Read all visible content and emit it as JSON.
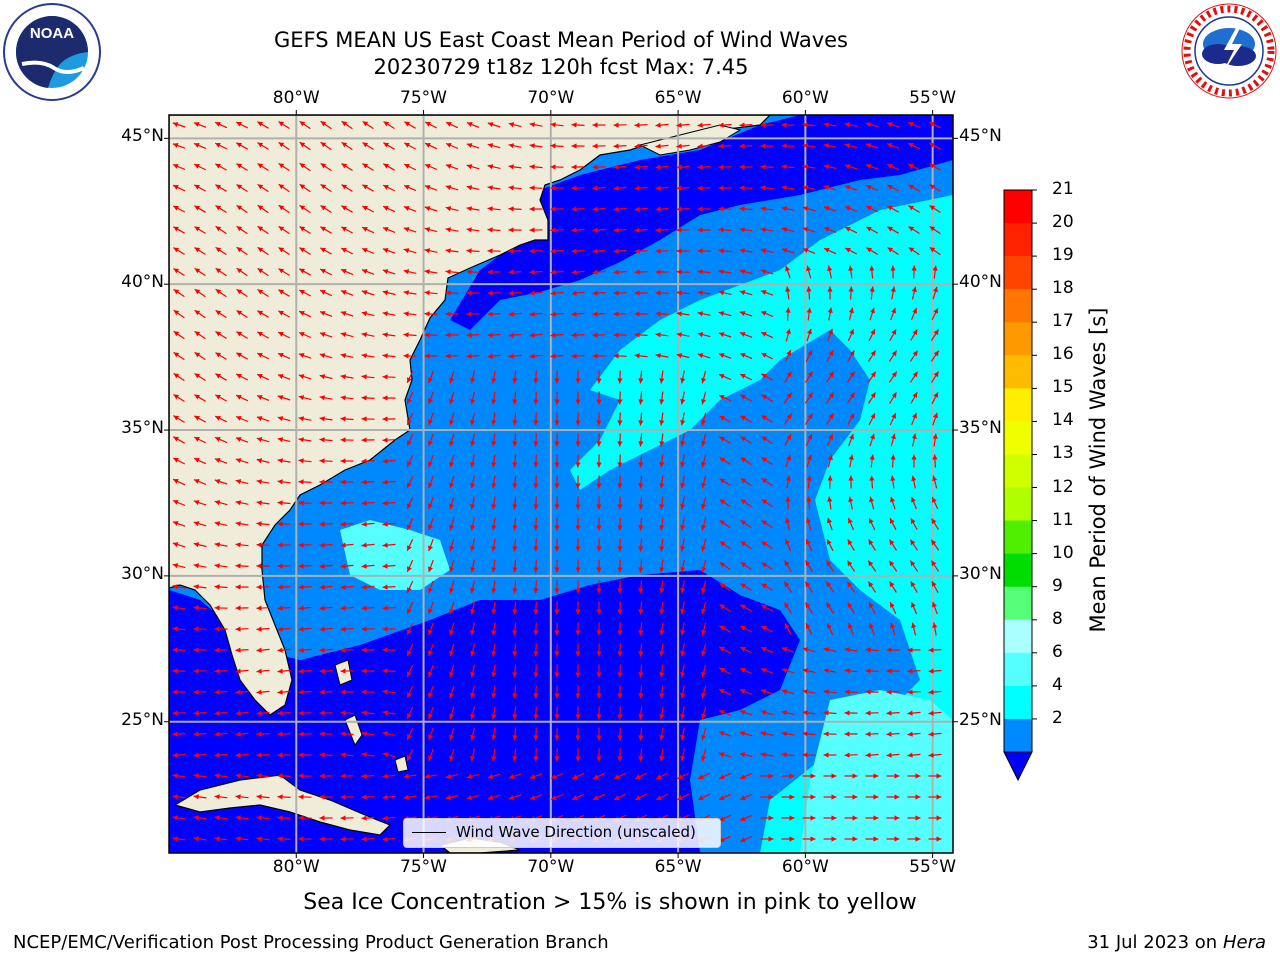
{
  "title": {
    "line1": "GEFS MEAN US East Coast Mean Period of Wind Waves",
    "line2": "20230729 t18z 120h fcst   Max: 7.45"
  },
  "logos": {
    "left": {
      "text": "NOAA",
      "ring_text": "NATIONAL OCEANIC AND ATMOSPHERIC ADMINISTRATION · U.S. DEPARTMENT OF COMMERCE"
    },
    "right": {
      "ring_text": "NATIONAL WEATHER SERVICE"
    }
  },
  "map": {
    "lon_labels": [
      "80°W",
      "75°W",
      "70°W",
      "65°W",
      "60°W",
      "55°W"
    ],
    "lon_values": [
      -80,
      -75,
      -70,
      -65,
      -60,
      -55
    ],
    "lat_labels": [
      "45°N",
      "40°N",
      "35°N",
      "30°N",
      "25°N"
    ],
    "lat_values": [
      45,
      40,
      35,
      30,
      25
    ],
    "extent": {
      "lon_min": -85,
      "lon_max": -54.2,
      "lat_min": 20.5,
      "lat_max": 45.8
    },
    "land_color": "#efedda",
    "grid": true,
    "legend_label": "Wind Wave Direction (unscaled)",
    "arrow_color": "#ff0000"
  },
  "colorbar": {
    "label": "Mean Period of Wind Waves [s]",
    "ticks": [
      "21",
      "20",
      "19",
      "18",
      "17",
      "16",
      "15",
      "14",
      "13",
      "12",
      "11",
      "10",
      "9",
      "8",
      "6",
      "4",
      "2"
    ],
    "colors": [
      "#ff0000",
      "#ff2200",
      "#ff4400",
      "#ff7700",
      "#ff9900",
      "#ffbb00",
      "#ffee00",
      "#f0ff00",
      "#d0ff00",
      "#b0ff00",
      "#50ee00",
      "#00dd00",
      "#55ff77",
      "#aaffff",
      "#55ffff",
      "#00ffff",
      "#0088ff"
    ],
    "extend_color": "#0000ff"
  },
  "bottom_text": "Sea Ice Concentration > 15% is shown in pink to yellow",
  "footer": {
    "left": "NCEP/EMC/Verification Post Processing Product Generation Branch",
    "right_date": "31 Jul 2023 on ",
    "right_host": "Hera"
  }
}
